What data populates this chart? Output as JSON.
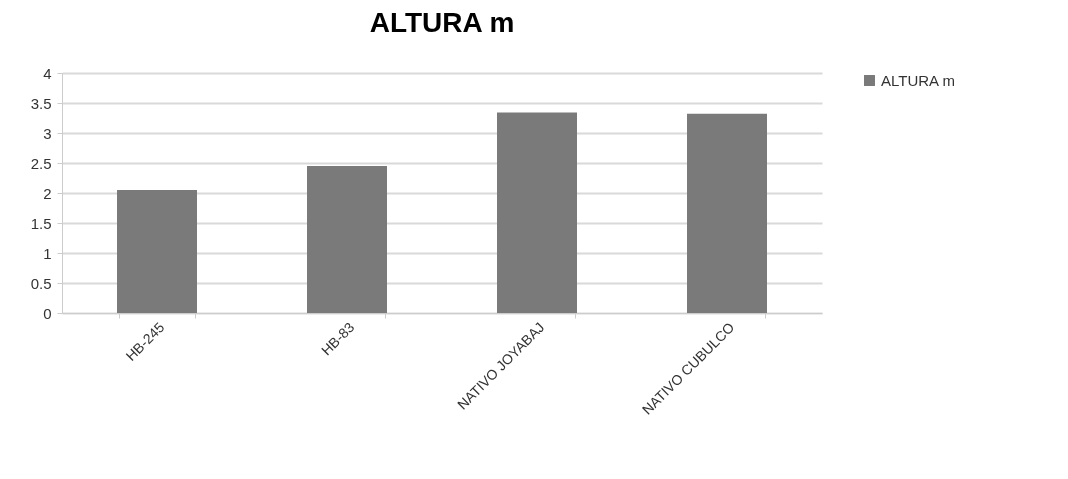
{
  "chart_data": {
    "type": "bar",
    "title": "ALTURA m",
    "categories": [
      "HB-245",
      "HB-83",
      "NATIVO JOYABAJ",
      "NATIVO CUBULCO"
    ],
    "series": [
      {
        "name": "ALTURA m",
        "color": "#7a7a7a",
        "values": [
          2.05,
          2.45,
          3.34,
          3.32
        ]
      }
    ],
    "ylim": [
      0,
      4
    ],
    "yticks": [
      0,
      0.5,
      1,
      1.5,
      2,
      2.5,
      3,
      3.5,
      4
    ],
    "grid": "y",
    "legend": "right"
  }
}
